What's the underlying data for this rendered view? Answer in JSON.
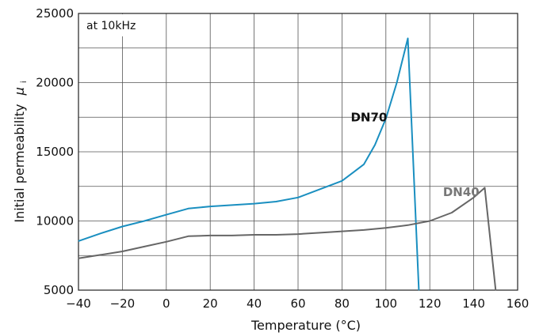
{
  "chart_data": {
    "type": "line",
    "title": "",
    "annotation": "at 10kHz",
    "xlabel": "Temperature (°C)",
    "ylabel": "Initial permeability",
    "ylabel_symbol": "μ",
    "ylabel_subscript": "i",
    "xlim": [
      -40,
      160
    ],
    "ylim": [
      5000,
      25000
    ],
    "xticks": [
      -40,
      -20,
      0,
      20,
      40,
      60,
      80,
      100,
      120,
      140,
      160
    ],
    "xtick_labels": [
      "−40",
      "−20",
      "0",
      "20",
      "40",
      "60",
      "80",
      "100",
      "120",
      "140",
      "160"
    ],
    "yticks": [
      5000,
      10000,
      15000,
      20000,
      25000
    ],
    "grid": true,
    "series": [
      {
        "name": "DN70",
        "color": "#1a8fc0",
        "label_at": [
          84,
          17200
        ],
        "x": [
          -40,
          -30,
          -20,
          -10,
          0,
          10,
          20,
          30,
          40,
          50,
          60,
          70,
          80,
          85,
          90,
          95,
          100,
          105,
          110,
          115
        ],
        "y": [
          8550,
          9100,
          9600,
          10000,
          10450,
          10900,
          11050,
          11150,
          11250,
          11400,
          11700,
          12300,
          12900,
          13500,
          14100,
          15500,
          17400,
          20000,
          23200,
          5000
        ]
      },
      {
        "name": "DN40",
        "color": "#666666",
        "label_at": [
          126,
          11800
        ],
        "x": [
          -40,
          -30,
          -20,
          -10,
          0,
          10,
          20,
          30,
          40,
          50,
          60,
          70,
          80,
          90,
          100,
          110,
          120,
          130,
          140,
          145,
          150
        ],
        "y": [
          7300,
          7550,
          7800,
          8150,
          8500,
          8900,
          8950,
          8950,
          9000,
          9000,
          9050,
          9150,
          9250,
          9350,
          9500,
          9700,
          10000,
          10600,
          11700,
          12400,
          5000
        ]
      }
    ]
  }
}
